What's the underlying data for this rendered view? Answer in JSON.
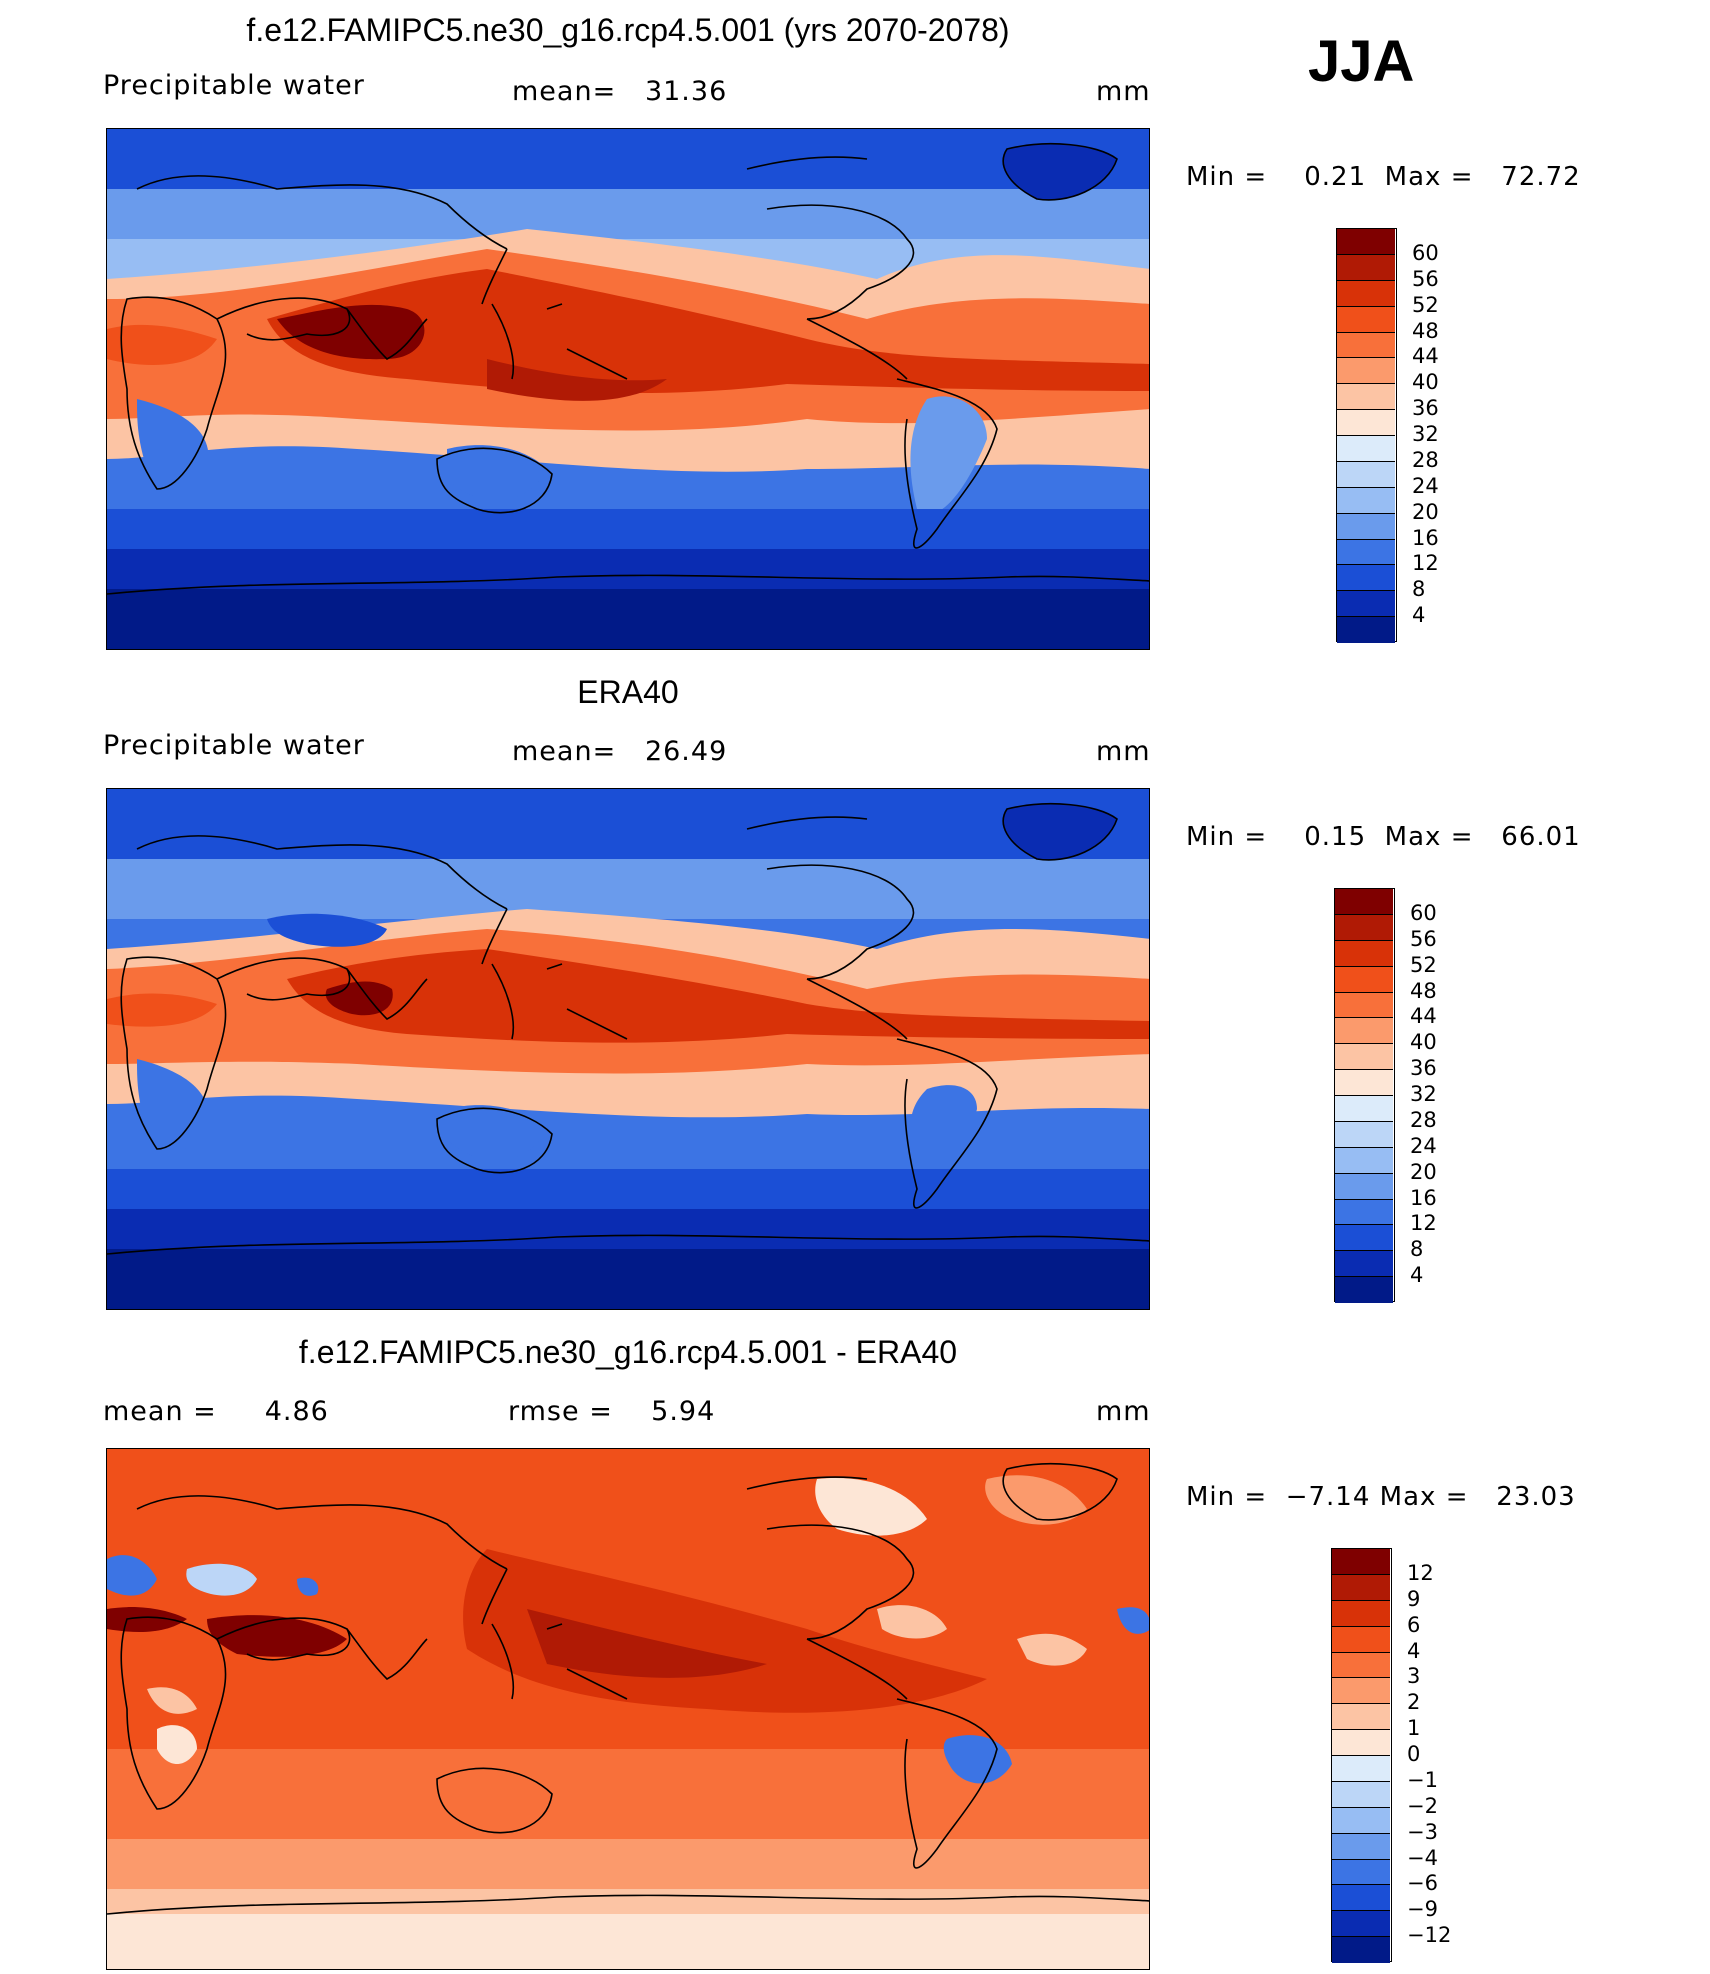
{
  "season": "JJA",
  "panels": [
    {
      "title": "f.e12.FAMIPC5.ne30_g16.rcp4.5.001 (yrs 2070-2078)",
      "left_label": "Precipitable  water",
      "mean_label": "mean=",
      "mean_value": "31.36",
      "unit": "mm",
      "min_label": "Min  =",
      "min_value": "0.21",
      "max_label": "Max  =",
      "max_value": "72.72",
      "colorbar": {
        "labels": [
          "60",
          "56",
          "52",
          "48",
          "44",
          "40",
          "36",
          "32",
          "28",
          "24",
          "20",
          "16",
          "12",
          "8",
          "4"
        ],
        "colors": [
          "#7f0000",
          "#b01a05",
          "#d83208",
          "#f0501a",
          "#f8703a",
          "#fb9a6c",
          "#fcc4a4",
          "#fde6d6",
          "#dcebfa",
          "#bcd6f7",
          "#97bdf3",
          "#6a9bec",
          "#3c74e4",
          "#1b4fd6",
          "#0a2cb2",
          "#011a88"
        ]
      }
    },
    {
      "title": "ERA40",
      "left_label": "Precipitable  water",
      "mean_label": "mean=",
      "mean_value": "26.49",
      "unit": "mm",
      "min_label": "Min  =",
      "min_value": "0.15",
      "max_label": "Max  =",
      "max_value": "66.01",
      "colorbar": {
        "labels": [
          "60",
          "56",
          "52",
          "48",
          "44",
          "40",
          "36",
          "32",
          "28",
          "24",
          "20",
          "16",
          "12",
          "8",
          "4"
        ],
        "colors": [
          "#7f0000",
          "#b01a05",
          "#d83208",
          "#f0501a",
          "#f8703a",
          "#fb9a6c",
          "#fcc4a4",
          "#fde6d6",
          "#dcebfa",
          "#bcd6f7",
          "#97bdf3",
          "#6a9bec",
          "#3c74e4",
          "#1b4fd6",
          "#0a2cb2",
          "#011a88"
        ]
      }
    },
    {
      "title": "f.e12.FAMIPC5.ne30_g16.rcp4.5.001 - ERA40",
      "left_label": "mean  =",
      "left_value": "4.86",
      "mean_label": "rmse  =",
      "mean_value": "5.94",
      "unit": "mm",
      "min_label": "Min  =",
      "min_value": "−7.14",
      "max_label": "Max  =",
      "max_value": "23.03",
      "colorbar": {
        "labels": [
          "12",
          "9",
          "6",
          "4",
          "3",
          "2",
          "1",
          "0",
          "−1",
          "−2",
          "−3",
          "−4",
          "−6",
          "−9",
          "−12"
        ],
        "colors": [
          "#7f0000",
          "#b01a05",
          "#d83208",
          "#f0501a",
          "#f8703a",
          "#fb9a6c",
          "#fcc4a4",
          "#fde6d6",
          "#dcebfa",
          "#bcd6f7",
          "#97bdf3",
          "#6a9bec",
          "#3c74e4",
          "#1b4fd6",
          "#0a2cb2",
          "#011a88"
        ]
      }
    }
  ]
}
